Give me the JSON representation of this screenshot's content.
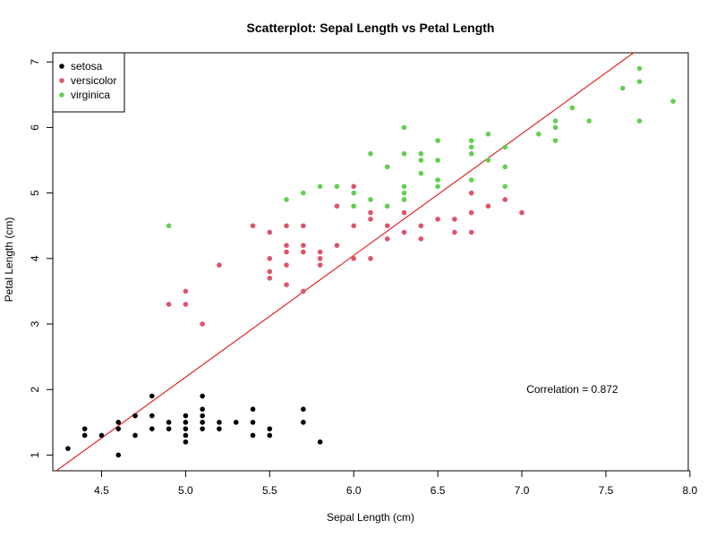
{
  "chart_data": {
    "type": "scatter",
    "title": "Scatterplot: Sepal Length vs Petal Length",
    "xlabel": "Sepal Length (cm)",
    "ylabel": "Petal Length (cm)",
    "xlim": [
      4.21,
      7.99
    ],
    "ylim": [
      0.76,
      7.14
    ],
    "xticks": [
      4.5,
      5.0,
      5.5,
      6.0,
      6.5,
      7.0,
      7.5,
      8.0
    ],
    "xtick_labels": [
      "4.5",
      "5.0",
      "5.5",
      "6.0",
      "6.5",
      "7.0",
      "7.5",
      "8.0"
    ],
    "yticks": [
      1,
      2,
      3,
      4,
      5,
      6,
      7
    ],
    "ytick_labels": [
      "1",
      "2",
      "3",
      "4",
      "5",
      "6",
      "7"
    ],
    "grid": false,
    "legend_position": "top-left",
    "series": [
      {
        "name": "setosa",
        "color": "#000000",
        "points": [
          [
            4.3,
            1.1
          ],
          [
            4.4,
            1.3
          ],
          [
            4.4,
            1.4
          ],
          [
            4.5,
            1.3
          ],
          [
            4.6,
            1.0
          ],
          [
            4.6,
            1.4
          ],
          [
            4.6,
            1.5
          ],
          [
            4.7,
            1.3
          ],
          [
            4.7,
            1.6
          ],
          [
            4.8,
            1.4
          ],
          [
            4.8,
            1.6
          ],
          [
            4.8,
            1.9
          ],
          [
            4.9,
            1.4
          ],
          [
            4.9,
            1.5
          ],
          [
            5.0,
            1.2
          ],
          [
            5.0,
            1.3
          ],
          [
            5.0,
            1.4
          ],
          [
            5.0,
            1.5
          ],
          [
            5.0,
            1.6
          ],
          [
            5.1,
            1.4
          ],
          [
            5.1,
            1.5
          ],
          [
            5.1,
            1.6
          ],
          [
            5.1,
            1.7
          ],
          [
            5.1,
            1.9
          ],
          [
            5.2,
            1.4
          ],
          [
            5.2,
            1.5
          ],
          [
            5.3,
            1.5
          ],
          [
            5.4,
            1.3
          ],
          [
            5.4,
            1.5
          ],
          [
            5.4,
            1.7
          ],
          [
            5.5,
            1.3
          ],
          [
            5.5,
            1.4
          ],
          [
            5.7,
            1.5
          ],
          [
            5.7,
            1.7
          ],
          [
            5.8,
            1.2
          ]
        ]
      },
      {
        "name": "versicolor",
        "color": "#DF536B",
        "points": [
          [
            4.9,
            3.3
          ],
          [
            5.0,
            3.3
          ],
          [
            5.0,
            3.5
          ],
          [
            5.1,
            3.0
          ],
          [
            5.2,
            3.9
          ],
          [
            5.4,
            4.5
          ],
          [
            5.5,
            3.7
          ],
          [
            5.5,
            3.8
          ],
          [
            5.5,
            4.0
          ],
          [
            5.5,
            4.4
          ],
          [
            5.6,
            3.6
          ],
          [
            5.6,
            3.9
          ],
          [
            5.6,
            4.1
          ],
          [
            5.6,
            4.2
          ],
          [
            5.6,
            4.5
          ],
          [
            5.7,
            3.5
          ],
          [
            5.7,
            4.1
          ],
          [
            5.7,
            4.2
          ],
          [
            5.7,
            4.5
          ],
          [
            5.8,
            3.9
          ],
          [
            5.8,
            4.0
          ],
          [
            5.8,
            4.1
          ],
          [
            5.9,
            4.2
          ],
          [
            5.9,
            4.8
          ],
          [
            6.0,
            4.0
          ],
          [
            6.0,
            4.5
          ],
          [
            6.0,
            5.1
          ],
          [
            6.1,
            4.0
          ],
          [
            6.1,
            4.6
          ],
          [
            6.1,
            4.7
          ],
          [
            6.2,
            4.3
          ],
          [
            6.2,
            4.5
          ],
          [
            6.3,
            4.4
          ],
          [
            6.3,
            4.7
          ],
          [
            6.3,
            4.9
          ],
          [
            6.4,
            4.3
          ],
          [
            6.4,
            4.5
          ],
          [
            6.5,
            4.6
          ],
          [
            6.6,
            4.4
          ],
          [
            6.6,
            4.6
          ],
          [
            6.7,
            4.4
          ],
          [
            6.7,
            4.7
          ],
          [
            6.7,
            5.0
          ],
          [
            6.8,
            4.8
          ],
          [
            6.9,
            4.9
          ],
          [
            7.0,
            4.7
          ]
        ]
      },
      {
        "name": "virginica",
        "color": "#61D04F",
        "points": [
          [
            4.9,
            4.5
          ],
          [
            5.6,
            4.9
          ],
          [
            5.7,
            5.0
          ],
          [
            5.8,
            5.1
          ],
          [
            5.9,
            5.1
          ],
          [
            6.0,
            4.8
          ],
          [
            6.0,
            5.0
          ],
          [
            6.1,
            4.9
          ],
          [
            6.1,
            5.6
          ],
          [
            6.2,
            4.8
          ],
          [
            6.2,
            5.4
          ],
          [
            6.3,
            4.9
          ],
          [
            6.3,
            5.0
          ],
          [
            6.3,
            5.1
          ],
          [
            6.3,
            5.6
          ],
          [
            6.3,
            6.0
          ],
          [
            6.4,
            5.3
          ],
          [
            6.4,
            5.5
          ],
          [
            6.4,
            5.6
          ],
          [
            6.5,
            5.1
          ],
          [
            6.5,
            5.2
          ],
          [
            6.5,
            5.5
          ],
          [
            6.5,
            5.8
          ],
          [
            6.7,
            5.2
          ],
          [
            6.7,
            5.6
          ],
          [
            6.7,
            5.7
          ],
          [
            6.7,
            5.8
          ],
          [
            6.8,
            5.5
          ],
          [
            6.8,
            5.9
          ],
          [
            6.9,
            5.1
          ],
          [
            6.9,
            5.4
          ],
          [
            6.9,
            5.7
          ],
          [
            7.1,
            5.9
          ],
          [
            7.2,
            5.8
          ],
          [
            7.2,
            6.0
          ],
          [
            7.2,
            6.1
          ],
          [
            7.3,
            6.3
          ],
          [
            7.4,
            6.1
          ],
          [
            7.6,
            6.6
          ],
          [
            7.7,
            6.1
          ],
          [
            7.7,
            6.7
          ],
          [
            7.7,
            6.9
          ],
          [
            7.9,
            6.4
          ]
        ]
      }
    ],
    "regression_line": {
      "color": "#E00000",
      "intercept": -7.101,
      "slope": 1.858
    },
    "annotation": {
      "text": "Correlation = 0.872",
      "x": 7.3,
      "y": 2.0
    }
  }
}
